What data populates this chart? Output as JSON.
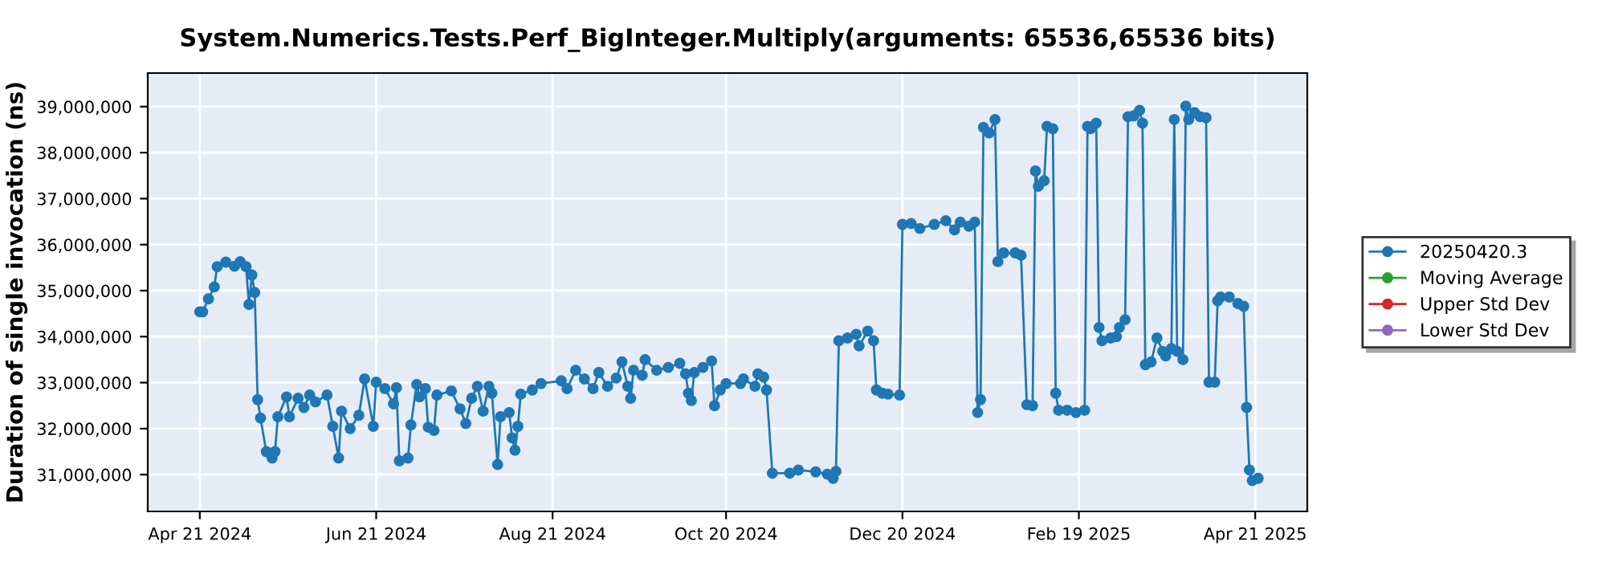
{
  "chart_data": {
    "type": "line",
    "title": "System.Numerics.Tests.Perf_BigInteger.Multiply(arguments: 65536,65536 bits)",
    "ylabel": "Duration of single invocation (ns)",
    "series": [
      {
        "name": "20250420.3",
        "color": "#1f77b4",
        "x": [
          "2024-04-21",
          "2024-04-22",
          "2024-04-24",
          "2024-04-26",
          "2024-04-27",
          "2024-04-30",
          "2024-05-03",
          "2024-05-05",
          "2024-05-07",
          "2024-05-08",
          "2024-05-09",
          "2024-05-10",
          "2024-05-11",
          "2024-05-12",
          "2024-05-14",
          "2024-05-16",
          "2024-05-17",
          "2024-05-18",
          "2024-05-21",
          "2024-05-22",
          "2024-05-25",
          "2024-05-27",
          "2024-05-29",
          "2024-05-31",
          "2024-06-04",
          "2024-06-06",
          "2024-06-08",
          "2024-06-09",
          "2024-06-12",
          "2024-06-15",
          "2024-06-17",
          "2024-06-20",
          "2024-06-21",
          "2024-06-24",
          "2024-06-27",
          "2024-06-28",
          "2024-06-29",
          "2024-07-02",
          "2024-07-03",
          "2024-07-05",
          "2024-07-06",
          "2024-07-08",
          "2024-07-09",
          "2024-07-11",
          "2024-07-12",
          "2024-07-17",
          "2024-07-20",
          "2024-07-22",
          "2024-07-24",
          "2024-07-26",
          "2024-07-28",
          "2024-07-30",
          "2024-07-31",
          "2024-08-02",
          "2024-08-03",
          "2024-08-06",
          "2024-08-07",
          "2024-08-08",
          "2024-08-09",
          "2024-08-10",
          "2024-08-14",
          "2024-08-17",
          "2024-08-24",
          "2024-08-26",
          "2024-08-29",
          "2024-09-01",
          "2024-09-04",
          "2024-09-06",
          "2024-09-09",
          "2024-09-12",
          "2024-09-14",
          "2024-09-16",
          "2024-09-17",
          "2024-09-18",
          "2024-09-21",
          "2024-09-22",
          "2024-09-26",
          "2024-09-30",
          "2024-10-04",
          "2024-10-06",
          "2024-10-07",
          "2024-10-08",
          "2024-10-09",
          "2024-10-12",
          "2024-10-15",
          "2024-10-16",
          "2024-10-18",
          "2024-10-20",
          "2024-10-25",
          "2024-10-26",
          "2024-10-30",
          "2024-10-31",
          "2024-11-02",
          "2024-11-03",
          "2024-11-05",
          "2024-11-11",
          "2024-11-14",
          "2024-11-20",
          "2024-11-24",
          "2024-11-26",
          "2024-11-27",
          "2024-11-28",
          "2024-12-01",
          "2024-12-04",
          "2024-12-05",
          "2024-12-08",
          "2024-12-10",
          "2024-12-11",
          "2024-12-13",
          "2024-12-15",
          "2024-12-19",
          "2024-12-20",
          "2024-12-23",
          "2024-12-26",
          "2024-12-31",
          "2025-01-04",
          "2025-01-07",
          "2025-01-09",
          "2025-01-12",
          "2025-01-14",
          "2025-01-15",
          "2025-01-16",
          "2025-01-17",
          "2025-01-19",
          "2025-01-21",
          "2025-01-22",
          "2025-01-24",
          "2025-01-28",
          "2025-01-30",
          "2025-02-01",
          "2025-02-03",
          "2025-02-04",
          "2025-02-05",
          "2025-02-07",
          "2025-02-08",
          "2025-02-10",
          "2025-02-11",
          "2025-02-12",
          "2025-02-15",
          "2025-02-18",
          "2025-02-21",
          "2025-02-22",
          "2025-02-23",
          "2025-02-25",
          "2025-02-26",
          "2025-02-27",
          "2025-03-02",
          "2025-03-04",
          "2025-03-05",
          "2025-03-07",
          "2025-03-08",
          "2025-03-10",
          "2025-03-12",
          "2025-03-13",
          "2025-03-14",
          "2025-03-16",
          "2025-03-18",
          "2025-03-20",
          "2025-03-21",
          "2025-03-23",
          "2025-03-24",
          "2025-03-25",
          "2025-03-27",
          "2025-03-28",
          "2025-03-29",
          "2025-03-31",
          "2025-04-02",
          "2025-04-04",
          "2025-04-05",
          "2025-04-07",
          "2025-04-08",
          "2025-04-09",
          "2025-04-12",
          "2025-04-15",
          "2025-04-17",
          "2025-04-18",
          "2025-04-19",
          "2025-04-20",
          "2025-04-22"
        ],
        "values": [
          34540000,
          34540000,
          34820000,
          35080000,
          35520000,
          35620000,
          35530000,
          35630000,
          35520000,
          34700000,
          35340000,
          34960000,
          32630000,
          32230000,
          31500000,
          31360000,
          31500000,
          32260000,
          32690000,
          32260000,
          32660000,
          32460000,
          32730000,
          32580000,
          32730000,
          32050000,
          31360000,
          32380000,
          32000000,
          32290000,
          33080000,
          32050000,
          33010000,
          32870000,
          32540000,
          32890000,
          31300000,
          31360000,
          32080000,
          32960000,
          32690000,
          32870000,
          32030000,
          31960000,
          32730000,
          32820000,
          32430000,
          32110000,
          32660000,
          32920000,
          32380000,
          32920000,
          32770000,
          31220000,
          32260000,
          32350000,
          31800000,
          31530000,
          32050000,
          32750000,
          32840000,
          32980000,
          33040000,
          32870000,
          33270000,
          33080000,
          32870000,
          33220000,
          32920000,
          33100000,
          33450000,
          32920000,
          32660000,
          33270000,
          33160000,
          33500000,
          33270000,
          33330000,
          33420000,
          33190000,
          32770000,
          32610000,
          33220000,
          33330000,
          33470000,
          32500000,
          32840000,
          32980000,
          32980000,
          33080000,
          32920000,
          33190000,
          33120000,
          32840000,
          31030000,
          31030000,
          31100000,
          31060000,
          31010000,
          30920000,
          31070000,
          33910000,
          33970000,
          34050000,
          33800000,
          34120000,
          33910000,
          32840000,
          32770000,
          32750000,
          32730000,
          36440000,
          36460000,
          36350000,
          36440000,
          36520000,
          36320000,
          36490000,
          36400000,
          36490000,
          32350000,
          32630000,
          38550000,
          38430000,
          38720000,
          35630000,
          35820000,
          35820000,
          35770000,
          32520000,
          32500000,
          37600000,
          37270000,
          37390000,
          38570000,
          38520000,
          32770000,
          32400000,
          32400000,
          32350000,
          32400000,
          38570000,
          38520000,
          38640000,
          34200000,
          33910000,
          33970000,
          34000000,
          34200000,
          34370000,
          38780000,
          38800000,
          38920000,
          38640000,
          33390000,
          33450000,
          33970000,
          33680000,
          33580000,
          33740000,
          38720000,
          33680000,
          33500000,
          39010000,
          38720000,
          38870000,
          38780000,
          38760000,
          33010000,
          33010000,
          34780000,
          34860000,
          34860000,
          34720000,
          34660000,
          32460000,
          31100000,
          30870000,
          30920000
        ]
      },
      {
        "name": "Moving Average",
        "color": "#2ca02c"
      },
      {
        "name": "Upper Std Dev",
        "color": "#d62728"
      },
      {
        "name": "Lower Std Dev",
        "color": "#9467bd"
      }
    ],
    "xlim": [
      "2024-04-03",
      "2025-05-09"
    ],
    "xticks": [
      {
        "value": "2024-04-21",
        "label": "Apr 21 2024"
      },
      {
        "value": "2024-06-21",
        "label": "Jun 21 2024"
      },
      {
        "value": "2024-08-21",
        "label": "Aug 21 2024"
      },
      {
        "value": "2024-10-20",
        "label": "Oct 20 2024"
      },
      {
        "value": "2024-12-20",
        "label": "Dec 20 2024"
      },
      {
        "value": "2025-02-19",
        "label": "Feb 19 2025"
      },
      {
        "value": "2025-04-21",
        "label": "Apr 21 2025"
      }
    ],
    "ylim": [
      30200000,
      39730000
    ],
    "yticks": [
      {
        "value": 31000000,
        "label": "31,000,000"
      },
      {
        "value": 32000000,
        "label": "32,000,000"
      },
      {
        "value": 33000000,
        "label": "33,000,000"
      },
      {
        "value": 34000000,
        "label": "34,000,000"
      },
      {
        "value": 35000000,
        "label": "35,000,000"
      },
      {
        "value": 36000000,
        "label": "36,000,000"
      },
      {
        "value": 37000000,
        "label": "37,000,000"
      },
      {
        "value": 38000000,
        "label": "38,000,000"
      },
      {
        "value": 39000000,
        "label": "39,000,000"
      }
    ],
    "grid": true,
    "legend": "right",
    "marker": "circle",
    "line_style": "solid"
  }
}
